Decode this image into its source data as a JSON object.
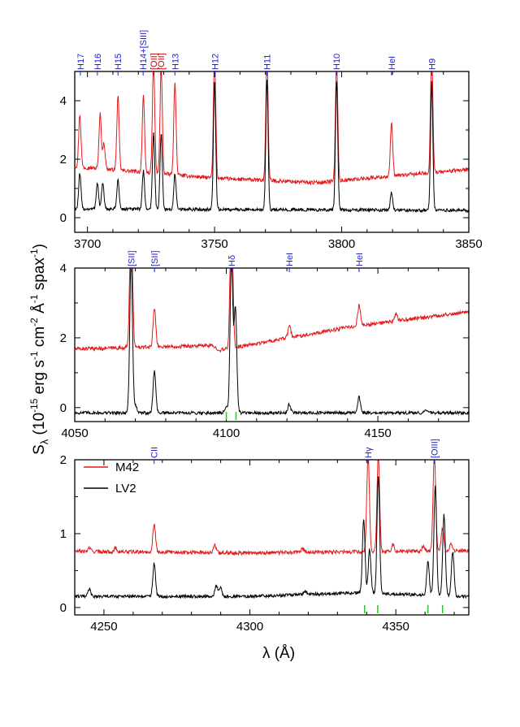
{
  "colors": {
    "m42": "#e41a1c",
    "lv2": "#000000",
    "line_blue": "#2222cc",
    "line_red": "#cc0000",
    "marker_green": "#22cc22"
  },
  "axis": {
    "xlabel": "λ (Å)",
    "ylabel": "S",
    "ylabel_sub": "λ",
    "ylabel_rest": " (10",
    "ylabel_exp": "-15",
    "ylabel_unit1": " erg s",
    "ylabel_unit2": " cm",
    "ylabel_unit3": " Å",
    "ylabel_unit4": " spax",
    "ylabel_close": ")",
    "exp_m1": "-1",
    "exp_m2": "-2"
  },
  "legend": {
    "m42": "M42",
    "lv2": "LV2"
  },
  "chart_data": [
    {
      "type": "line",
      "xlim": [
        3695,
        3850
      ],
      "ylim": [
        -0.5,
        5
      ],
      "xticks": [
        3700,
        3750,
        3800,
        3850
      ],
      "xminor": 10,
      "yticks": [
        0,
        2,
        4
      ],
      "yminor": 1,
      "series": [
        {
          "name": "M42",
          "baseline": [
            [
              3695,
              1.75
            ],
            [
              3750,
              1.35
            ],
            [
              3790,
              1.2
            ],
            [
              3850,
              1.65
            ]
          ],
          "lines": [
            [
              3697,
              1.8
            ],
            [
              3705,
              1.9
            ],
            [
              3706.5,
              0.9
            ],
            [
              3712,
              2.5
            ],
            [
              3722,
              2.6
            ],
            [
              3726,
              3.8
            ],
            [
              3729,
              3.6
            ],
            [
              3734.4,
              3.2
            ],
            [
              3750,
              4.2
            ],
            [
              3770.6,
              4.2
            ],
            [
              3798,
              4.2
            ],
            [
              3819.6,
              1.8
            ],
            [
              3835.4,
              4.2
            ]
          ]
        },
        {
          "name": "LV2",
          "baseline": [
            [
              3695,
              0.3
            ],
            [
              3850,
              0.25
            ]
          ],
          "lines": [
            [
              3697,
              1.2
            ],
            [
              3703.9,
              0.9
            ],
            [
              3706,
              0.9
            ],
            [
              3712,
              1.0
            ],
            [
              3722,
              1.3
            ],
            [
              3726,
              2.6
            ],
            [
              3729,
              2.6
            ],
            [
              3734.4,
              1.2
            ],
            [
              3750,
              4.4
            ],
            [
              3770.6,
              4.4
            ],
            [
              3798,
              4.4
            ],
            [
              3819.6,
              0.6
            ],
            [
              3835.4,
              4.4
            ]
          ]
        }
      ],
      "line_labels": [
        {
          "label": "H17",
          "x": 3697.2,
          "color": "blue"
        },
        {
          "label": "H16",
          "x": 3703.9,
          "color": "blue"
        },
        {
          "label": "H15",
          "x": 3712.0,
          "color": "blue"
        },
        {
          "label": "H14+[SIII]",
          "x": 3721.9,
          "color": "blue"
        },
        {
          "label": "[OII]",
          "x": 3726.0,
          "color": "red"
        },
        {
          "label": "[OII]",
          "x": 3728.8,
          "color": "red"
        },
        {
          "label": "H13",
          "x": 3734.4,
          "color": "blue"
        },
        {
          "label": "H12",
          "x": 3750.2,
          "color": "blue"
        },
        {
          "label": "H11",
          "x": 3770.6,
          "color": "blue"
        },
        {
          "label": "H10",
          "x": 3797.9,
          "color": "blue"
        },
        {
          "label": "HeI",
          "x": 3819.6,
          "color": "blue"
        },
        {
          "label": "H9",
          "x": 3835.4,
          "color": "blue"
        }
      ],
      "markers": []
    },
    {
      "type": "line",
      "xlim": [
        4050,
        4180
      ],
      "ylim": [
        -0.4,
        4
      ],
      "xticks": [
        4050,
        4100,
        4150
      ],
      "xminor": 10,
      "yticks": [
        0,
        2,
        4
      ],
      "yminor": 1,
      "series": [
        {
          "name": "M42",
          "baseline": [
            [
              4050,
              1.68
            ],
            [
              4095,
              1.78
            ],
            [
              4098,
              1.65
            ],
            [
              4140,
              2.3
            ],
            [
              4180,
              2.75
            ]
          ],
          "lines": [
            [
              4068.6,
              4.1
            ],
            [
              4076.3,
              1.1
            ],
            [
              4101.7,
              4.1
            ],
            [
              4120.8,
              0.35
            ],
            [
              4143.8,
              0.6
            ],
            [
              4156.0,
              0.2
            ]
          ]
        },
        {
          "name": "LV2",
          "baseline": [
            [
              4050,
              -0.15
            ],
            [
              4180,
              -0.15
            ]
          ],
          "lines": [
            [
              4068.6,
              4.4
            ],
            [
              4070,
              0.2
            ],
            [
              4076.3,
              1.2
            ],
            [
              4100,
              0.2
            ],
            [
              4101.7,
              4.4
            ],
            [
              4103,
              3.0
            ],
            [
              4120.8,
              0.25
            ],
            [
              4143.8,
              0.45
            ],
            [
              4166,
              0.1
            ]
          ]
        }
      ],
      "line_labels": [
        {
          "label": "[SII]",
          "x": 4068.6,
          "color": "blue"
        },
        {
          "label": "[SII]",
          "x": 4076.3,
          "color": "blue"
        },
        {
          "label": "Hδ",
          "x": 4101.7,
          "color": "blue"
        },
        {
          "label": "HeI",
          "x": 4120.8,
          "color": "blue"
        },
        {
          "label": "HeI",
          "x": 4143.8,
          "color": "blue"
        }
      ],
      "markers": [
        4100.0,
        4103.2
      ]
    },
    {
      "type": "line",
      "xlim": [
        4240,
        4375
      ],
      "ylim": [
        -0.1,
        2
      ],
      "xticks": [
        4250,
        4300,
        4350
      ],
      "xminor": 10,
      "yticks": [
        0,
        1,
        2
      ],
      "yminor": 0.5,
      "series": [
        {
          "name": "M42",
          "baseline": [
            [
              4240,
              0.76
            ],
            [
              4300,
              0.74
            ],
            [
              4375,
              0.77
            ]
          ],
          "lines": [
            [
              4245,
              0.05
            ],
            [
              4254,
              0.05
            ],
            [
              4267.2,
              0.38
            ],
            [
              4288,
              0.1
            ],
            [
              4318,
              0.06
            ],
            [
              4340.5,
              1.3
            ],
            [
              4344,
              1.3
            ],
            [
              4349,
              0.1
            ],
            [
              4359.4,
              0.06
            ],
            [
              4363.2,
              1.3
            ],
            [
              4366,
              0.3
            ],
            [
              4369,
              0.1
            ]
          ]
        },
        {
          "name": "LV2",
          "baseline": [
            [
              4240,
              0.15
            ],
            [
              4300,
              0.15
            ],
            [
              4335,
              0.2
            ],
            [
              4375,
              0.15
            ]
          ],
          "lines": [
            [
              4245,
              0.1
            ],
            [
              4267.2,
              0.45
            ],
            [
              4288.5,
              0.15
            ],
            [
              4290,
              0.12
            ],
            [
              4319,
              0.05
            ],
            [
              4339,
              1.0
            ],
            [
              4341,
              0.6
            ],
            [
              4344,
              1.6
            ],
            [
              4361,
              0.45
            ],
            [
              4363.5,
              1.5
            ],
            [
              4366.5,
              1.1
            ],
            [
              4369.5,
              0.6
            ]
          ]
        }
      ],
      "line_labels": [
        {
          "label": "CII",
          "x": 4267.2,
          "color": "blue"
        },
        {
          "label": "Hγ",
          "x": 4340.5,
          "color": "blue"
        },
        {
          "label": "[OIII]",
          "x": 4363.2,
          "color": "blue"
        }
      ],
      "markers": [
        4339.3,
        4343.8,
        4361.0,
        4366.0
      ]
    }
  ]
}
